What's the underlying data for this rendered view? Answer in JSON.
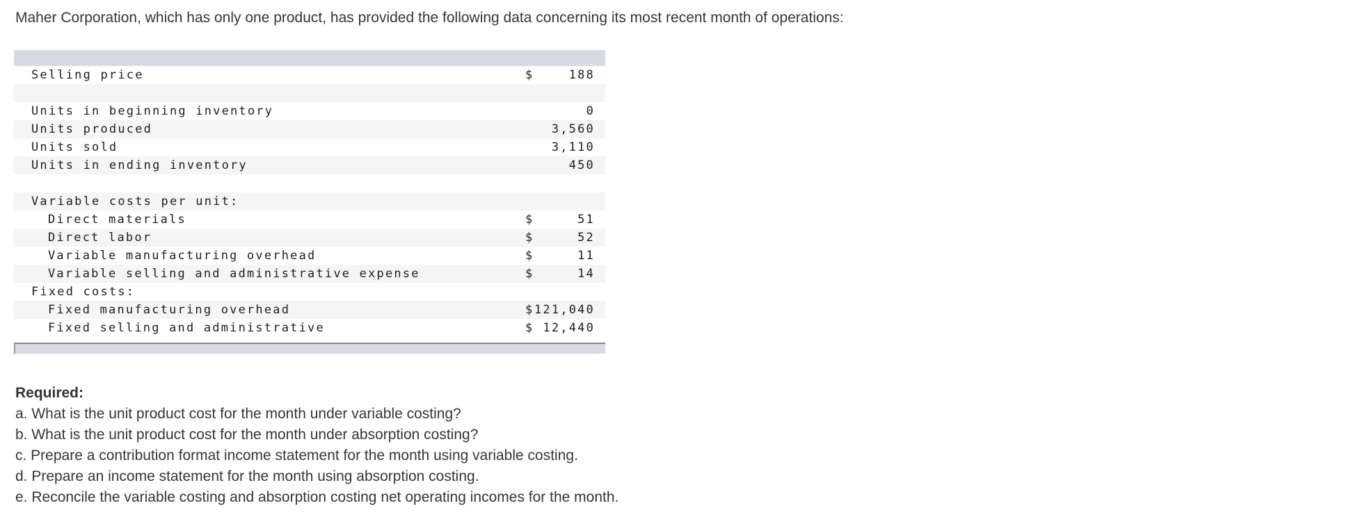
{
  "intro": "Maher Corporation, which has only one product, has provided the following data concerning its most recent month of operations:",
  "table": {
    "rows": [
      {
        "label": "Selling price",
        "currency": "$",
        "amount": "188"
      },
      {
        "label": "",
        "currency": "",
        "amount": ""
      },
      {
        "label": "Units in beginning inventory",
        "currency": "",
        "amount": "0"
      },
      {
        "label": "Units produced",
        "currency": "",
        "amount": "3,560"
      },
      {
        "label": "Units sold",
        "currency": "",
        "amount": "3,110"
      },
      {
        "label": "Units in ending inventory",
        "currency": "",
        "amount": "450"
      },
      {
        "label": "",
        "currency": "",
        "amount": ""
      },
      {
        "label": "Variable costs per unit:",
        "currency": "",
        "amount": ""
      },
      {
        "label": "Direct materials",
        "currency": "$",
        "amount": "51"
      },
      {
        "label": "Direct labor",
        "currency": "$",
        "amount": "52"
      },
      {
        "label": "Variable manufacturing overhead",
        "currency": "$",
        "amount": "11"
      },
      {
        "label": "Variable selling and administrative expense",
        "currency": "$",
        "amount": "14"
      },
      {
        "label": "Fixed costs:",
        "currency": "",
        "amount": ""
      },
      {
        "label": "Fixed manufacturing overhead",
        "currency": "$",
        "amount": "121,040"
      },
      {
        "label": "Fixed selling and administrative",
        "currency": "$",
        "amount": "12,440"
      }
    ]
  },
  "required": {
    "heading": "Required:",
    "items": [
      "a. What is the unit product cost for the month under variable costing?",
      "b. What is the unit product cost for the month under absorption costing?",
      "c. Prepare a contribution format income statement for the month using variable costing.",
      "d. Prepare an income statement for the month using absorption costing.",
      "e. Reconcile the variable costing and absorption costing net operating incomes for the month."
    ]
  },
  "colors": {
    "table_header_band": "#d6dae2",
    "table_alt_row": "#f5f5f6",
    "scrollbar_track": "#d8dbe2",
    "scrollbar_border": "#84868b",
    "text": "#333537"
  }
}
